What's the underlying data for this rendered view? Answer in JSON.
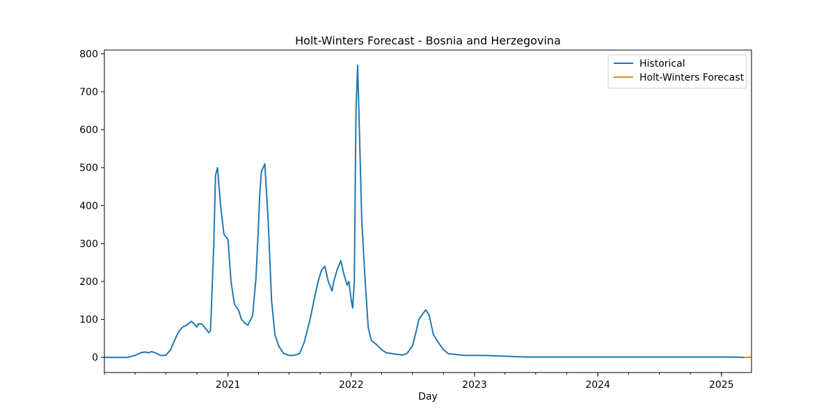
{
  "chart_data": {
    "type": "line",
    "title": "Holt-Winters Forecast - Bosnia and Herzegovina",
    "xlabel": "Day",
    "ylabel": "",
    "xlim": [
      "2020-01-01",
      "2025-03-31"
    ],
    "ylim": [
      -40,
      810
    ],
    "y_ticks": [
      0,
      100,
      200,
      300,
      400,
      500,
      600,
      700,
      800
    ],
    "x_ticks": [
      {
        "date": "2021-01-01",
        "label": "2021"
      },
      {
        "date": "2022-01-01",
        "label": "2022"
      },
      {
        "date": "2023-01-01",
        "label": "2023"
      },
      {
        "date": "2024-01-01",
        "label": "2024"
      },
      {
        "date": "2025-01-01",
        "label": "2025"
      }
    ],
    "grid": false,
    "legend": {
      "position": "top-right",
      "entries": [
        "Historical",
        "Holt-Winters Forecast"
      ]
    },
    "series": [
      {
        "name": "Historical",
        "color": "#1f77b4",
        "x": [
          "2020-01-01",
          "2020-03-10",
          "2020-03-31",
          "2020-04-20",
          "2020-05-01",
          "2020-05-10",
          "2020-05-20",
          "2020-05-31",
          "2020-06-15",
          "2020-07-01",
          "2020-07-15",
          "2020-08-01",
          "2020-08-10",
          "2020-08-20",
          "2020-09-01",
          "2020-09-15",
          "2020-10-01",
          "2020-10-05",
          "2020-10-15",
          "2020-10-25",
          "2020-11-05",
          "2020-11-10",
          "2020-11-12",
          "2020-11-20",
          "2020-11-25",
          "2020-12-01",
          "2020-12-10",
          "2020-12-20",
          "2021-01-01",
          "2021-01-10",
          "2021-01-20",
          "2021-02-01",
          "2021-02-10",
          "2021-02-20",
          "2021-03-01",
          "2021-03-15",
          "2021-03-25",
          "2021-04-01",
          "2021-04-05",
          "2021-04-10",
          "2021-04-20",
          "2021-04-30",
          "2021-05-10",
          "2021-05-20",
          "2021-05-31",
          "2021-06-15",
          "2021-07-01",
          "2021-07-15",
          "2021-08-01",
          "2021-08-15",
          "2021-09-01",
          "2021-09-15",
          "2021-09-25",
          "2021-10-05",
          "2021-10-15",
          "2021-10-25",
          "2021-11-05",
          "2021-11-10",
          "2021-11-20",
          "2021-12-01",
          "2021-12-10",
          "2021-12-20",
          "2021-12-25",
          "2022-01-01",
          "2022-01-05",
          "2022-01-10",
          "2022-01-15",
          "2022-01-20",
          "2022-01-25",
          "2022-02-01",
          "2022-02-10",
          "2022-02-20",
          "2022-03-01",
          "2022-03-15",
          "2022-04-01",
          "2022-04-15",
          "2022-05-01",
          "2022-05-15",
          "2022-06-01",
          "2022-06-15",
          "2022-07-01",
          "2022-07-10",
          "2022-07-20",
          "2022-08-01",
          "2022-08-10",
          "2022-08-20",
          "2022-09-01",
          "2022-09-15",
          "2022-10-01",
          "2022-10-15",
          "2022-11-01",
          "2022-12-01",
          "2023-01-01",
          "2023-02-01",
          "2023-03-01",
          "2023-04-01",
          "2023-05-01",
          "2023-06-01",
          "2023-09-01",
          "2024-01-01",
          "2024-06-01",
          "2024-09-01",
          "2024-12-01",
          "2025-01-15",
          "2025-03-10"
        ],
        "values": [
          0,
          0,
          5,
          13,
          14,
          12,
          15,
          12,
          5,
          5,
          20,
          55,
          70,
          80,
          85,
          95,
          80,
          88,
          88,
          78,
          65,
          70,
          110,
          300,
          480,
          500,
          400,
          325,
          310,
          200,
          140,
          125,
          100,
          90,
          85,
          110,
          210,
          340,
          430,
          490,
          510,
          360,
          150,
          60,
          30,
          10,
          5,
          5,
          10,
          40,
          100,
          160,
          200,
          230,
          240,
          200,
          175,
          200,
          230,
          255,
          220,
          190,
          200,
          150,
          130,
          200,
          650,
          770,
          600,
          360,
          220,
          80,
          45,
          35,
          20,
          12,
          10,
          8,
          6,
          10,
          30,
          60,
          100,
          115,
          125,
          110,
          60,
          40,
          20,
          10,
          8,
          5,
          5,
          5,
          4,
          3,
          2,
          1,
          1,
          1,
          1,
          1,
          1,
          1,
          0
        ]
      },
      {
        "name": "Holt-Winters Forecast",
        "color": "#ff7f0e",
        "x": [
          "2025-03-10",
          "2025-03-31"
        ],
        "values": [
          0,
          0
        ]
      }
    ]
  }
}
